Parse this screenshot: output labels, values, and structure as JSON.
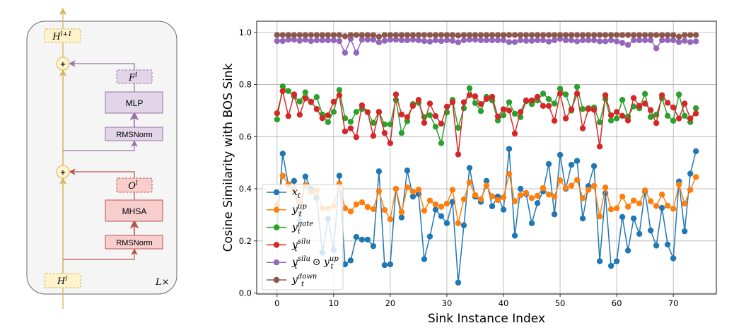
{
  "diagram": {
    "output_state": {
      "base": "H",
      "sup": "l+1"
    },
    "input_state": {
      "base": "H",
      "sup": "l"
    },
    "mlp_output": {
      "base": "F",
      "sup": "l"
    },
    "attn_output": {
      "base": "O",
      "sup": "l"
    },
    "mlp_label": "MLP",
    "mhsa_label": "MHSA",
    "norm_top_label": "RMSNorm",
    "norm_bottom_label": "RMSNorm",
    "add_symbol": "+",
    "repeat_label": "L×",
    "colors": {
      "residual": "#d6b656",
      "residual_fill": "#fff2cc",
      "mlp": "#9673a6",
      "mlp_fill": "#e1d5e7",
      "attn": "#b85450",
      "attn_fill": "#f8cecc",
      "block_fill": "#f5f5f5"
    }
  },
  "chart_data": {
    "type": "line",
    "xlabel": "Sink Instance Index",
    "ylabel": "Cosine Similarity with BOS Sink",
    "xlim": [
      -3.6,
      77.6
    ],
    "ylim": [
      -0.004,
      1.043
    ],
    "xticks": [
      "0",
      "10",
      "20",
      "30",
      "40",
      "50",
      "60",
      "70"
    ],
    "xtick_values": [
      0,
      10,
      20,
      30,
      40,
      50,
      60,
      70
    ],
    "yticks": [
      "0.0",
      "0.2",
      "0.4",
      "0.6",
      "0.8",
      "1.0"
    ],
    "ytick_values": [
      0,
      0.2,
      0.4,
      0.6,
      0.8,
      1.0
    ],
    "grid": true,
    "legend_position": "lower-left",
    "x_start": 0,
    "series": [
      {
        "name": {
          "base": "x",
          "sub": "t",
          "sup": ""
        },
        "color": "#1f77b4",
        "values": [
          0.25,
          0.535,
          0.415,
          0.43,
          0.275,
          0.447,
          0.4,
          0.365,
          0.155,
          0.285,
          0.165,
          0.45,
          0.11,
          0.125,
          0.215,
          0.205,
          0.205,
          0.18,
          0.467,
          0.107,
          0.11,
          0.4,
          0.29,
          0.47,
          0.37,
          0.38,
          0.13,
          0.217,
          0.32,
          0.295,
          0.268,
          0.35,
          0.04,
          0.26,
          0.48,
          0.37,
          0.35,
          0.43,
          0.333,
          0.37,
          0.32,
          0.553,
          0.22,
          0.4,
          0.38,
          0.268,
          0.345,
          0.39,
          0.495,
          0.302,
          0.53,
          0.4,
          0.492,
          0.507,
          0.286,
          0.41,
          0.487,
          0.122,
          0.383,
          0.104,
          0.122,
          0.292,
          0.163,
          0.286,
          0.227,
          0.39,
          0.24,
          0.182,
          0.327,
          0.186,
          0.133,
          0.428,
          0.237,
          0.458,
          0.544
        ]
      },
      {
        "name": {
          "base": "y",
          "sub": "t",
          "sup": "up"
        },
        "color": "#ff7f0e",
        "values": [
          0.34,
          0.45,
          0.418,
          0.396,
          0.348,
          0.414,
          0.388,
          0.394,
          0.325,
          0.325,
          0.334,
          0.42,
          0.325,
          0.313,
          0.34,
          0.348,
          0.33,
          0.322,
          0.391,
          0.319,
          0.283,
          0.4,
          0.31,
          0.405,
          0.389,
          0.397,
          0.316,
          0.355,
          0.34,
          0.331,
          0.343,
          0.396,
          0.268,
          0.36,
          0.425,
          0.376,
          0.36,
          0.412,
          0.371,
          0.357,
          0.367,
          0.457,
          0.352,
          0.375,
          0.384,
          0.364,
          0.373,
          0.403,
          0.378,
          0.37,
          0.432,
          0.403,
          0.412,
          0.434,
          0.364,
          0.396,
          0.411,
          0.294,
          0.405,
          0.321,
          0.325,
          0.37,
          0.331,
          0.355,
          0.344,
          0.394,
          0.352,
          0.334,
          0.378,
          0.335,
          0.323,
          0.416,
          0.343,
          0.396,
          0.445
        ]
      },
      {
        "name": {
          "base": "y",
          "sub": "t",
          "sup": "gate"
        },
        "color": "#2ca02c",
        "values": [
          0.666,
          0.793,
          0.775,
          0.755,
          0.735,
          0.77,
          0.732,
          0.752,
          0.685,
          0.656,
          0.695,
          0.779,
          0.671,
          0.657,
          0.695,
          0.706,
          0.694,
          0.653,
          0.695,
          0.647,
          0.647,
          0.741,
          0.614,
          0.659,
          0.725,
          0.73,
          0.675,
          0.682,
          0.638,
          0.575,
          0.693,
          0.741,
          0.634,
          0.709,
          0.786,
          0.729,
          0.698,
          0.753,
          0.739,
          0.662,
          0.682,
          0.732,
          0.688,
          0.675,
          0.736,
          0.725,
          0.739,
          0.765,
          0.744,
          0.727,
          0.784,
          0.762,
          0.7,
          0.791,
          0.706,
          0.709,
          0.712,
          0.655,
          0.745,
          0.662,
          0.67,
          0.741,
          0.677,
          0.716,
          0.709,
          0.764,
          0.675,
          0.684,
          0.747,
          0.68,
          0.661,
          0.762,
          0.68,
          0.656,
          0.709
        ]
      },
      {
        "name": {
          "base": "y",
          "sub": "t",
          "sup": "silu"
        },
        "color": "#d62728",
        "values": [
          0.69,
          0.775,
          0.679,
          0.762,
          0.684,
          0.747,
          0.734,
          0.706,
          0.671,
          0.682,
          0.734,
          0.759,
          0.62,
          0.632,
          0.598,
          0.72,
          0.694,
          0.603,
          0.695,
          0.614,
          0.575,
          0.762,
          0.685,
          0.675,
          0.718,
          0.741,
          0.653,
          0.727,
          0.679,
          0.65,
          0.715,
          0.732,
          0.532,
          0.732,
          0.759,
          0.755,
          0.725,
          0.745,
          0.753,
          0.677,
          0.705,
          0.7,
          0.612,
          0.695,
          0.739,
          0.739,
          0.753,
          0.718,
          0.718,
          0.661,
          0.765,
          0.67,
          0.705,
          0.765,
          0.632,
          0.706,
          0.703,
          0.562,
          0.759,
          0.682,
          0.695,
          0.68,
          0.662,
          0.748,
          0.718,
          0.727,
          0.702,
          0.652,
          0.759,
          0.73,
          0.712,
          0.67,
          0.727,
          0.67,
          0.689
        ]
      },
      {
        "name": {
          "base": "y",
          "sub": "t",
          "sup": "silu",
          "op": " ⊙ ",
          "base2": "y",
          "sub2": "t",
          "sup2": "up"
        },
        "color": "#9467bd",
        "values": [
          0.967,
          0.967,
          0.972,
          0.972,
          0.968,
          0.972,
          0.967,
          0.97,
          0.97,
          0.97,
          0.97,
          0.967,
          0.922,
          0.975,
          0.922,
          0.972,
          0.972,
          0.972,
          0.962,
          0.968,
          0.972,
          0.972,
          0.97,
          0.97,
          0.972,
          0.97,
          0.967,
          0.965,
          0.97,
          0.967,
          0.97,
          0.968,
          0.962,
          0.97,
          0.972,
          0.972,
          0.97,
          0.97,
          0.97,
          0.97,
          0.97,
          0.963,
          0.963,
          0.97,
          0.968,
          0.968,
          0.97,
          0.97,
          0.965,
          0.97,
          0.975,
          0.97,
          0.97,
          0.966,
          0.97,
          0.97,
          0.97,
          0.966,
          0.966,
          0.97,
          0.966,
          0.96,
          0.952,
          0.97,
          0.97,
          0.97,
          0.97,
          0.939,
          0.97,
          0.97,
          0.97,
          0.963,
          0.968,
          0.963,
          0.966
        ]
      },
      {
        "name": {
          "base": "y",
          "sub": "t",
          "sup": "down"
        },
        "color": "#8c564b",
        "values": [
          0.99,
          0.99,
          0.99,
          0.99,
          0.99,
          0.99,
          0.99,
          0.99,
          0.99,
          0.99,
          0.99,
          0.99,
          0.985,
          0.99,
          0.99,
          0.99,
          0.99,
          0.99,
          0.984,
          0.99,
          0.99,
          0.99,
          0.99,
          0.99,
          0.99,
          0.99,
          0.99,
          0.99,
          0.99,
          0.99,
          0.99,
          0.99,
          0.988,
          0.99,
          0.99,
          0.99,
          0.99,
          0.99,
          0.99,
          0.99,
          0.99,
          0.99,
          0.99,
          0.99,
          0.99,
          0.99,
          0.99,
          0.99,
          0.99,
          0.99,
          0.99,
          0.99,
          0.99,
          0.99,
          0.99,
          0.99,
          0.99,
          0.99,
          0.99,
          0.99,
          0.99,
          0.99,
          0.99,
          0.99,
          0.99,
          0.99,
          0.99,
          0.99,
          0.99,
          0.99,
          0.99,
          0.984,
          0.99,
          0.99,
          0.99
        ]
      }
    ]
  }
}
